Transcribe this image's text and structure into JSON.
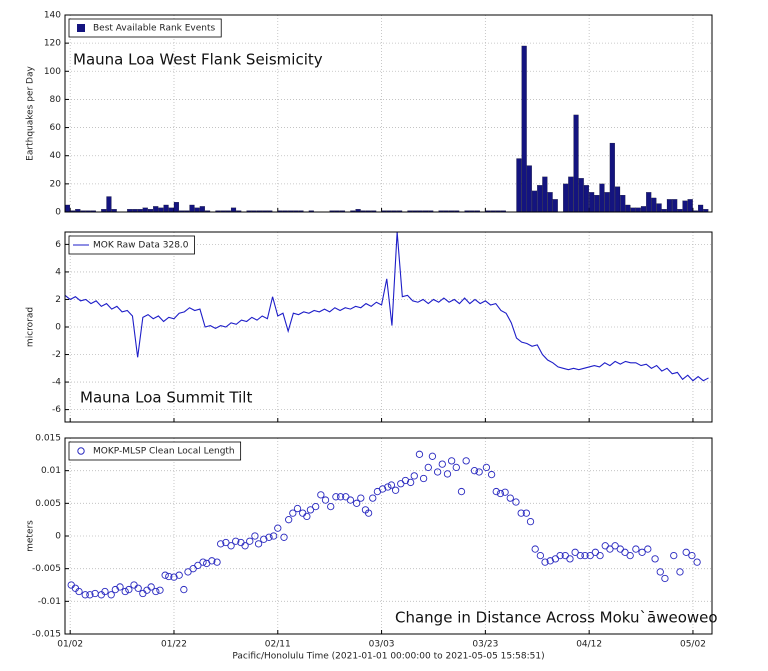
{
  "chart_data": [
    {
      "type": "bar",
      "annotation": "Mauna Loa West Flank Seismicity",
      "ylabel": "Earthquakes per Day",
      "legend": "upper left",
      "grid": true,
      "x": [
        0,
        1,
        2,
        3,
        4,
        5,
        6,
        7,
        8,
        9,
        10,
        11,
        12,
        13,
        14,
        15,
        16,
        17,
        18,
        19,
        20,
        21,
        22,
        23,
        24,
        25,
        26,
        27,
        28,
        29,
        30,
        31,
        32,
        33,
        34,
        35,
        36,
        37,
        38,
        39,
        40,
        41,
        42,
        43,
        44,
        45,
        46,
        47,
        48,
        49,
        50,
        51,
        52,
        53,
        54,
        55,
        56,
        57,
        58,
        59,
        60,
        61,
        62,
        63,
        64,
        65,
        66,
        67,
        68,
        69,
        70,
        71,
        72,
        73,
        74,
        75,
        76,
        77,
        78,
        79,
        80,
        81,
        82,
        83,
        84,
        85,
        86,
        87,
        88,
        89,
        90,
        91,
        92,
        93,
        94,
        95,
        96,
        97,
        98,
        99,
        100,
        101,
        102,
        103,
        104,
        105,
        106,
        107,
        108,
        109,
        110,
        111,
        112,
        113,
        114,
        115,
        116,
        117,
        118,
        119,
        120,
        121,
        122,
        123
      ],
      "series": [
        {
          "name": "Best Available Rank Events",
          "color": "#14147f",
          "values": [
            5,
            1,
            2,
            1,
            1,
            1,
            0,
            2,
            11,
            2,
            0,
            0,
            2,
            2,
            2,
            3,
            2,
            4,
            3,
            5,
            3,
            7,
            1,
            1,
            5,
            3,
            4,
            1,
            0,
            1,
            1,
            1,
            3,
            1,
            0,
            1,
            1,
            1,
            1,
            1,
            0,
            1,
            1,
            1,
            1,
            1,
            0,
            1,
            0,
            0,
            0,
            1,
            1,
            1,
            0,
            1,
            2,
            1,
            1,
            1,
            0,
            1,
            1,
            1,
            1,
            0,
            1,
            1,
            1,
            1,
            1,
            0,
            1,
            1,
            1,
            1,
            0,
            1,
            1,
            1,
            0,
            1,
            1,
            1,
            1,
            0,
            0,
            38,
            118,
            33,
            15,
            19,
            25,
            14,
            9,
            0,
            20,
            25,
            69,
            24,
            19,
            14,
            12,
            20,
            14,
            49,
            18,
            12,
            5,
            3,
            3,
            4,
            14,
            10,
            6,
            2,
            9,
            9,
            2,
            8,
            9,
            1,
            5,
            2
          ]
        }
      ],
      "xlim": [
        0,
        124.67
      ],
      "ylim": [
        0,
        140
      ],
      "yticks": [
        0,
        20,
        40,
        60,
        80,
        100,
        120,
        140
      ]
    },
    {
      "type": "line",
      "annotation": "Mauna Loa Summit Tilt",
      "ylabel": "microrad",
      "legend": "upper left",
      "grid": true,
      "x": [
        0,
        1,
        2,
        3,
        4,
        5,
        6,
        7,
        8,
        9,
        10,
        11,
        12,
        13,
        14,
        15,
        16,
        17,
        18,
        19,
        20,
        21,
        22,
        23,
        24,
        25,
        26,
        27,
        28,
        29,
        30,
        31,
        32,
        33,
        34,
        35,
        36,
        37,
        38,
        39,
        40,
        41,
        42,
        43,
        44,
        45,
        46,
        47,
        48,
        49,
        50,
        51,
        52,
        53,
        54,
        55,
        56,
        57,
        58,
        59,
        60,
        61,
        62,
        63,
        64,
        65,
        66,
        67,
        68,
        69,
        70,
        71,
        72,
        73,
        74,
        75,
        76,
        77,
        78,
        79,
        80,
        81,
        82,
        83,
        84,
        85,
        86,
        87,
        88,
        89,
        90,
        91,
        92,
        93,
        94,
        95,
        96,
        97,
        98,
        99,
        100,
        101,
        102,
        103,
        104,
        105,
        106,
        107,
        108,
        109,
        110,
        111,
        112,
        113,
        114,
        115,
        116,
        117,
        118,
        119,
        120,
        121,
        122,
        123,
        124
      ],
      "series": [
        {
          "name": "MOK Raw Data 328.0",
          "color": "#1e1ec8",
          "values": [
            2.3,
            2.0,
            2.2,
            1.9,
            2.0,
            1.7,
            1.9,
            1.5,
            1.7,
            1.3,
            1.5,
            1.1,
            1.2,
            0.8,
            -2.2,
            0.7,
            0.9,
            0.6,
            0.8,
            0.4,
            0.7,
            0.6,
            1.0,
            1.1,
            1.4,
            1.2,
            1.3,
            0.0,
            0.1,
            -0.1,
            0.1,
            0.0,
            0.3,
            0.2,
            0.5,
            0.4,
            0.7,
            0.5,
            0.8,
            0.6,
            2.2,
            0.8,
            1.0,
            -0.3,
            1.0,
            0.9,
            1.1,
            1.0,
            1.2,
            1.1,
            1.3,
            1.1,
            1.4,
            1.2,
            1.4,
            1.3,
            1.5,
            1.4,
            1.7,
            1.5,
            1.8,
            1.6,
            3.5,
            0.1,
            6.9,
            2.2,
            2.3,
            1.9,
            1.8,
            2.0,
            1.7,
            2.0,
            1.8,
            2.1,
            1.8,
            2.0,
            1.7,
            2.1,
            1.7,
            2.0,
            1.7,
            1.9,
            1.6,
            1.7,
            1.2,
            1.0,
            0.3,
            -0.8,
            -1.1,
            -1.2,
            -1.4,
            -1.3,
            -2.0,
            -2.4,
            -2.6,
            -2.9,
            -3.0,
            -3.1,
            -3.0,
            -3.1,
            -3.0,
            -2.9,
            -2.8,
            -2.9,
            -2.6,
            -2.8,
            -2.5,
            -2.7,
            -2.5,
            -2.6,
            -2.6,
            -2.8,
            -2.7,
            -3.0,
            -2.8,
            -3.2,
            -3.0,
            -3.4,
            -3.3,
            -3.8,
            -3.5,
            -3.9,
            -3.6,
            -3.9,
            -3.7
          ]
        }
      ],
      "xlim": [
        0,
        124.67
      ],
      "ylim": [
        -6.9,
        6.9
      ],
      "yticks": [
        -6,
        -4,
        -2,
        0,
        2,
        4,
        6
      ]
    },
    {
      "type": "scatter",
      "annotation": "Change in Distance Across Moku`āweoweo",
      "ylabel": "meters",
      "xlabel": "Pacific/Honolulu Time (2021-01-01 00:00:00 to 2021-05-05 15:58:51)",
      "legend": "upper left",
      "grid": true,
      "x": [
        1.2,
        2.0,
        2.7,
        3.9,
        4.8,
        5.8,
        7.0,
        7.7,
        8.9,
        9.7,
        10.6,
        11.6,
        12.3,
        13.3,
        14.1,
        15.0,
        15.8,
        16.6,
        17.5,
        18.3,
        19.3,
        20.0,
        21.0,
        22.0,
        22.9,
        23.7,
        24.7,
        25.6,
        26.6,
        27.3,
        28.3,
        29.3,
        30.0,
        31.0,
        32.0,
        32.9,
        33.9,
        34.7,
        35.6,
        36.6,
        37.3,
        38.3,
        39.3,
        40.2,
        41.0,
        42.2,
        43.1,
        43.9,
        44.8,
        45.8,
        46.6,
        47.3,
        48.3,
        49.3,
        50.2,
        51.2,
        52.2,
        53.1,
        54.1,
        55.0,
        56.2,
        57.0,
        57.9,
        58.5,
        59.3,
        60.2,
        61.2,
        62.2,
        62.9,
        63.7,
        64.7,
        65.6,
        66.6,
        67.3,
        68.3,
        69.1,
        70.0,
        70.8,
        71.8,
        72.7,
        73.7,
        74.5,
        75.4,
        76.4,
        77.3,
        78.9,
        79.8,
        81.2,
        82.2,
        83.1,
        83.9,
        84.8,
        85.8,
        86.9,
        87.9,
        88.9,
        89.7,
        90.6,
        91.6,
        92.5,
        93.5,
        94.5,
        95.4,
        96.4,
        97.3,
        98.3,
        99.3,
        100.2,
        101.2,
        102.2,
        103.1,
        104.1,
        105.0,
        106.0,
        107.0,
        107.9,
        108.9,
        110.0,
        111.2,
        112.3,
        113.7,
        114.7,
        115.6,
        117.3,
        118.5,
        119.7,
        120.8,
        121.8
      ],
      "series": [
        {
          "name": "MOKP-MLSP Clean Local Length",
          "color": "#2a2ac0",
          "values": [
            -0.0075,
            -0.008,
            -0.0085,
            -0.009,
            -0.009,
            -0.0088,
            -0.009,
            -0.0085,
            -0.009,
            -0.0082,
            -0.0078,
            -0.0085,
            -0.0082,
            -0.0075,
            -0.008,
            -0.0088,
            -0.0083,
            -0.0078,
            -0.0085,
            -0.0083,
            -0.006,
            -0.0062,
            -0.0063,
            -0.006,
            -0.0082,
            -0.0055,
            -0.005,
            -0.0045,
            -0.004,
            -0.0042,
            -0.0038,
            -0.004,
            -0.0012,
            -0.001,
            -0.0015,
            -0.0008,
            -0.001,
            -0.0015,
            -0.0008,
            0.0,
            -0.0012,
            -0.0005,
            -0.0002,
            0.0,
            0.0012,
            -0.0002,
            0.0025,
            0.0035,
            0.0042,
            0.0035,
            0.003,
            0.004,
            0.0045,
            0.0063,
            0.0055,
            0.0045,
            0.006,
            0.006,
            0.006,
            0.0055,
            0.005,
            0.0058,
            0.004,
            0.0035,
            0.0058,
            0.0068,
            0.0072,
            0.0075,
            0.0078,
            0.007,
            0.008,
            0.0085,
            0.0082,
            0.0092,
            0.0125,
            0.0088,
            0.0105,
            0.0122,
            0.0098,
            0.011,
            0.0095,
            0.0115,
            0.0105,
            0.0068,
            0.0115,
            0.01,
            0.0098,
            0.0105,
            0.0094,
            0.0068,
            0.0065,
            0.0067,
            0.0058,
            0.0052,
            0.0035,
            0.0035,
            0.0022,
            -0.002,
            -0.003,
            -0.004,
            -0.0038,
            -0.0035,
            -0.003,
            -0.003,
            -0.0035,
            -0.0025,
            -0.003,
            -0.003,
            -0.003,
            -0.0025,
            -0.003,
            -0.0015,
            -0.002,
            -0.0015,
            -0.002,
            -0.0025,
            -0.003,
            -0.002,
            -0.0025,
            -0.002,
            -0.0035,
            -0.0055,
            -0.0065,
            -0.003,
            -0.0055,
            -0.0025,
            -0.003,
            -0.004
          ]
        }
      ],
      "xlim": [
        0,
        124.67
      ],
      "ylim": [
        -0.015,
        0.015
      ],
      "yticks": [
        -0.015,
        -0.01,
        -0.005,
        0,
        0.005,
        0.01,
        0.015
      ],
      "xticks": [
        {
          "value": 1,
          "label": "01/02"
        },
        {
          "value": 21,
          "label": "01/22"
        },
        {
          "value": 41,
          "label": "02/11"
        },
        {
          "value": 61,
          "label": "03/03"
        },
        {
          "value": 81,
          "label": "03/23"
        },
        {
          "value": 101,
          "label": "04/12"
        },
        {
          "value": 121,
          "label": "05/02"
        }
      ]
    }
  ]
}
